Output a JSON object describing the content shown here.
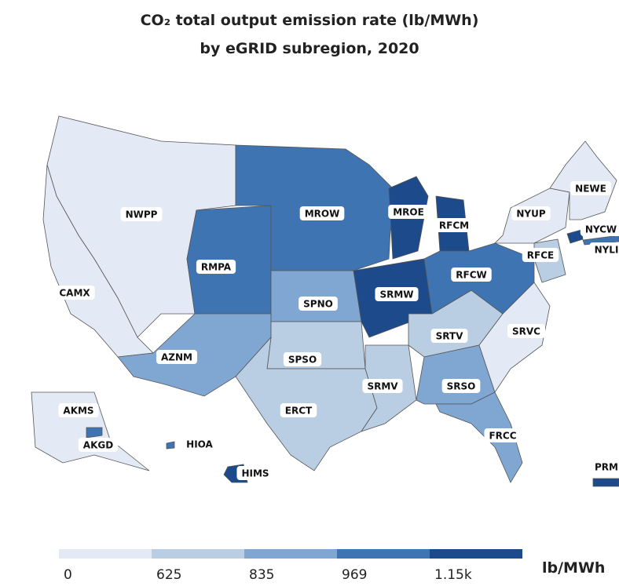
{
  "title": "CO₂ total output emission rate (lb/MWh)",
  "subtitle": "by eGRID subregion, 2020",
  "regions": [
    {
      "label": "NWPP",
      "color": "#e4eaf5"
    },
    {
      "label": "CAMX",
      "color": "#e4eaf5"
    },
    {
      "label": "RMPA",
      "color": "#3f74b3"
    },
    {
      "label": "MROW",
      "color": "#3f74b3"
    },
    {
      "label": "MROE",
      "color": "#1c4a8a"
    },
    {
      "label": "RFCM",
      "color": "#1c4a8a"
    },
    {
      "label": "SPNO",
      "color": "#7fa7d2"
    },
    {
      "label": "SRMW",
      "color": "#1c4a8a"
    },
    {
      "label": "AZNM",
      "color": "#7fa7d2"
    },
    {
      "label": "SPSO",
      "color": "#b9cde3"
    },
    {
      "label": "ERCT",
      "color": "#b9cde3"
    },
    {
      "label": "SRMV",
      "color": "#b9cde3"
    },
    {
      "label": "SRTV",
      "color": "#b9cde3"
    },
    {
      "label": "SRSO",
      "color": "#7fa7d2"
    },
    {
      "label": "FRCC",
      "color": "#7fa7d2"
    },
    {
      "label": "SRVC",
      "color": "#e4eaf5"
    },
    {
      "label": "RFCW",
      "color": "#3f74b3"
    },
    {
      "label": "RFCE",
      "color": "#b9cde3"
    },
    {
      "label": "NYUP",
      "color": "#e4eaf5"
    },
    {
      "label": "NEWE",
      "color": "#e4eaf5"
    },
    {
      "label": "NYCW",
      "color": "#1c4a8a"
    },
    {
      "label": "NYLI",
      "color": "#3f74b3"
    },
    {
      "label": "AKMS",
      "color": "#e4eaf5"
    },
    {
      "label": "AKGD",
      "color": "#3f74b3"
    },
    {
      "label": "HIOA",
      "color": "#3f74b3"
    },
    {
      "label": "HIMS",
      "color": "#1c4a8a"
    },
    {
      "label": "PRM",
      "color": "#1c4a8a"
    }
  ],
  "legend": {
    "ticks": [
      0,
      625,
      835,
      969,
      {
        "value": 1150,
        "label": "1.15k"
      }
    ],
    "colors": [
      "#e4eaf5",
      "#b9cde3",
      "#7fa7d2",
      "#3f74b3",
      "#1c4a8a"
    ],
    "unit": "lb/MWh"
  }
}
